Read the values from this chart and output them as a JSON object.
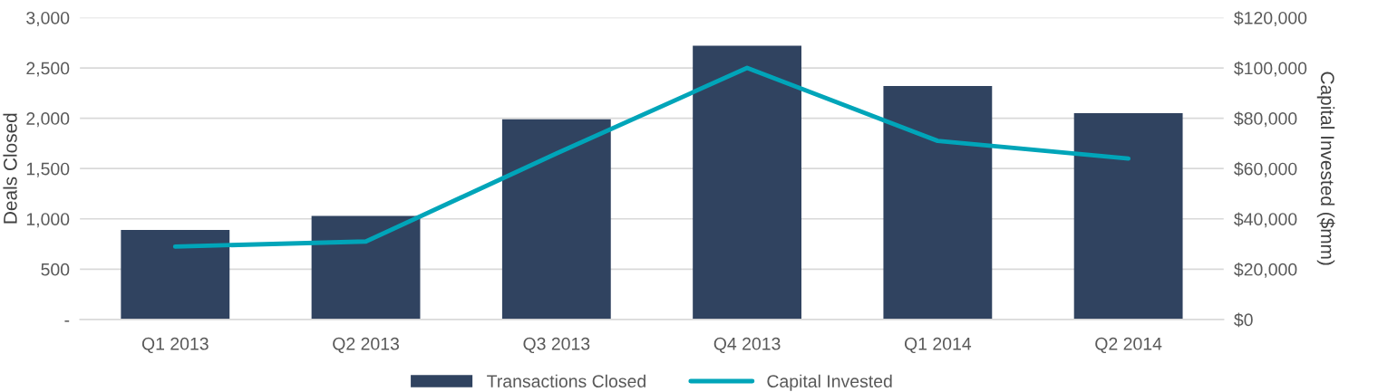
{
  "chart_data": {
    "type": "bar",
    "categories": [
      "Q1 2013",
      "Q2 2013",
      "Q3 2013",
      "Q4 2013",
      "Q1 2014",
      "Q2 2014"
    ],
    "series": [
      {
        "name": "Transactions Closed",
        "color": "#304360",
        "values": [
          890,
          1030,
          1990,
          2720,
          2320,
          2050
        ]
      },
      {
        "name": "Capital Invested",
        "type": "line",
        "axis": "y2",
        "color": "#00a5b9",
        "values": [
          29000,
          31000,
          66000,
          100000,
          71000,
          64000
        ]
      }
    ],
    "ylabel": "Deals Closed",
    "y2label": "Capital Invested ($mm)",
    "ylim": [
      0,
      3000
    ],
    "yticks": [
      {
        "value": 0,
        "label": "-"
      },
      {
        "value": 500,
        "label": "500"
      },
      {
        "value": 1000,
        "label": "1,000"
      },
      {
        "value": 1500,
        "label": "1,500"
      },
      {
        "value": 2000,
        "label": "2,000"
      },
      {
        "value": 2500,
        "label": "2,500"
      },
      {
        "value": 3000,
        "label": "3,000"
      }
    ],
    "y2lim": [
      0,
      120000
    ],
    "y2ticks": [
      {
        "value": 0,
        "label": "$0"
      },
      {
        "value": 20000,
        "label": "$20,000"
      },
      {
        "value": 40000,
        "label": "$40,000"
      },
      {
        "value": 60000,
        "label": "$60,000"
      },
      {
        "value": 80000,
        "label": "$80,000"
      },
      {
        "value": 100000,
        "label": "$100,000"
      },
      {
        "value": 120000,
        "label": "$120,000"
      }
    ],
    "grid": "y",
    "legend": "bottom",
    "marker": "none",
    "line_style": "solid"
  }
}
